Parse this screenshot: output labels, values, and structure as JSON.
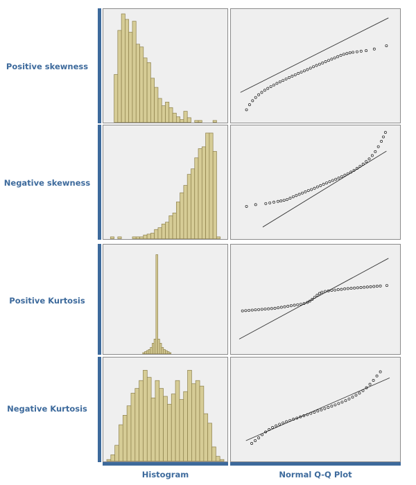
{
  "colors": {
    "label": "#3d6a9c",
    "accent_bar": "#3d6a9c",
    "panel_bg": "#efefef",
    "panel_border": "#8a8a8a",
    "hist_fill": "#d6cc96",
    "hist_stroke": "#8c7f4a",
    "qq_point": "#1a1a1a",
    "qq_line": "#333333"
  },
  "column_labels": [
    "Histogram",
    "Normal Q-Q Plot"
  ],
  "chart_data": [
    {
      "type": "histogram",
      "row_label": "Positive skewness",
      "values": [
        0,
        0,
        52,
        100,
        118,
        112,
        98,
        110,
        85,
        82,
        70,
        65,
        48,
        38,
        26,
        18,
        22,
        16,
        10,
        6,
        3,
        12,
        5,
        0,
        2,
        2,
        0,
        0,
        0,
        2,
        0,
        0
      ],
      "ylim": [
        0,
        118
      ],
      "qq_points": [
        [
          -2.9,
          -2.08
        ],
        [
          -2.75,
          -1.8
        ],
        [
          -2.6,
          -1.58
        ],
        [
          -2.45,
          -1.4
        ],
        [
          -2.3,
          -1.25
        ],
        [
          -2.15,
          -1.12
        ],
        [
          -2.0,
          -1.0
        ],
        [
          -1.85,
          -0.9
        ],
        [
          -1.7,
          -0.8
        ],
        [
          -1.55,
          -0.71
        ],
        [
          -1.4,
          -0.62
        ],
        [
          -1.25,
          -0.54
        ],
        [
          -1.1,
          -0.46
        ],
        [
          -0.95,
          -0.38
        ],
        [
          -0.8,
          -0.3
        ],
        [
          -0.65,
          -0.22
        ],
        [
          -0.5,
          -0.15
        ],
        [
          -0.35,
          -0.07
        ],
        [
          -0.2,
          0.0
        ],
        [
          -0.05,
          0.07
        ],
        [
          0.1,
          0.14
        ],
        [
          0.25,
          0.22
        ],
        [
          0.4,
          0.3
        ],
        [
          0.55,
          0.37
        ],
        [
          0.7,
          0.44
        ],
        [
          0.85,
          0.51
        ],
        [
          1.0,
          0.58
        ],
        [
          1.15,
          0.65
        ],
        [
          1.3,
          0.72
        ],
        [
          1.45,
          0.79
        ],
        [
          1.6,
          0.86
        ],
        [
          1.75,
          0.93
        ],
        [
          1.9,
          0.99
        ],
        [
          2.05,
          1.03
        ],
        [
          2.2,
          1.07
        ],
        [
          2.35,
          1.1
        ],
        [
          2.55,
          1.13
        ],
        [
          2.75,
          1.16
        ],
        [
          3.0,
          1.19
        ],
        [
          3.4,
          1.28
        ],
        [
          4.0,
          1.46
        ]
      ],
      "qq_line": [
        [
          -3.2,
          -1.12
        ],
        [
          4.1,
          3.0
        ]
      ],
      "xlim": [
        -3.5,
        4.5
      ],
      "ylim_qq": [
        -2.6,
        3.3
      ]
    },
    {
      "type": "histogram",
      "row_label": "Negative skewness",
      "values": [
        0,
        2,
        0,
        2,
        0,
        0,
        0,
        2,
        2,
        2,
        4,
        5,
        6,
        10,
        12,
        16,
        18,
        25,
        28,
        40,
        50,
        58,
        70,
        76,
        88,
        98,
        100,
        115,
        115,
        95,
        2,
        0
      ],
      "ylim": [
        0,
        118
      ],
      "qq_points": [
        [
          -3.9,
          -1.36
        ],
        [
          -3.45,
          -1.26
        ],
        [
          -2.95,
          -1.2
        ],
        [
          -2.75,
          -1.16
        ],
        [
          -2.55,
          -1.12
        ],
        [
          -2.35,
          -1.08
        ],
        [
          -2.2,
          -1.05
        ],
        [
          -2.05,
          -1.02
        ],
        [
          -1.9,
          -0.97
        ],
        [
          -1.75,
          -0.9
        ],
        [
          -1.6,
          -0.82
        ],
        [
          -1.45,
          -0.75
        ],
        [
          -1.3,
          -0.68
        ],
        [
          -1.15,
          -0.61
        ],
        [
          -1.0,
          -0.54
        ],
        [
          -0.85,
          -0.47
        ],
        [
          -0.7,
          -0.41
        ],
        [
          -0.55,
          -0.34
        ],
        [
          -0.4,
          -0.26
        ],
        [
          -0.25,
          -0.19
        ],
        [
          -0.1,
          -0.11
        ],
        [
          0.05,
          -0.04
        ],
        [
          0.2,
          0.03
        ],
        [
          0.35,
          0.1
        ],
        [
          0.5,
          0.17
        ],
        [
          0.65,
          0.24
        ],
        [
          0.8,
          0.32
        ],
        [
          0.95,
          0.4
        ],
        [
          1.1,
          0.48
        ],
        [
          1.25,
          0.57
        ],
        [
          1.4,
          0.67
        ],
        [
          1.55,
          0.78
        ],
        [
          1.7,
          0.9
        ],
        [
          1.85,
          1.02
        ],
        [
          2.0,
          1.16
        ],
        [
          2.15,
          1.31
        ],
        [
          2.3,
          1.5
        ],
        [
          2.45,
          1.72
        ],
        [
          2.6,
          2.0
        ],
        [
          2.75,
          2.3
        ],
        [
          2.85,
          2.55
        ],
        [
          2.95,
          2.8
        ]
      ],
      "qq_line": [
        [
          -3.1,
          -2.52
        ],
        [
          3.0,
          1.75
        ]
      ],
      "xlim": [
        -4.5,
        3.5
      ],
      "ylim_qq": [
        -3.0,
        3.0
      ]
    },
    {
      "type": "histogram",
      "row_label": "Positive Kurtosis",
      "values": [
        0,
        0,
        0,
        0,
        0,
        0,
        0,
        0,
        0,
        0,
        0,
        0,
        0,
        0,
        0,
        0,
        0,
        0,
        0,
        1,
        2,
        3,
        4,
        6,
        10,
        14,
        95,
        14,
        10,
        6,
        4,
        3,
        2,
        1,
        0,
        0,
        0,
        0,
        0,
        0,
        0,
        0,
        0,
        0,
        0,
        0,
        0,
        0,
        0,
        0,
        0,
        0,
        0,
        0,
        0,
        0,
        0,
        0,
        0,
        0,
        0,
        0
      ],
      "ylim": [
        0,
        100
      ],
      "qq_points": [
        [
          -4.5,
          -0.45
        ],
        [
          -4.3,
          -0.44
        ],
        [
          -4.1,
          -0.43
        ],
        [
          -3.9,
          -0.42
        ],
        [
          -3.7,
          -0.41
        ],
        [
          -3.5,
          -0.4
        ],
        [
          -3.3,
          -0.39
        ],
        [
          -3.1,
          -0.38
        ],
        [
          -2.9,
          -0.37
        ],
        [
          -2.7,
          -0.36
        ],
        [
          -2.5,
          -0.35
        ],
        [
          -2.3,
          -0.33
        ],
        [
          -2.1,
          -0.31
        ],
        [
          -1.9,
          -0.29
        ],
        [
          -1.7,
          -0.27
        ],
        [
          -1.5,
          -0.25
        ],
        [
          -1.3,
          -0.23
        ],
        [
          -1.1,
          -0.21
        ],
        [
          -0.9,
          -0.19
        ],
        [
          -0.7,
          -0.16
        ],
        [
          -0.5,
          -0.12
        ],
        [
          -0.35,
          -0.07
        ],
        [
          -0.2,
          0.0
        ],
        [
          -0.05,
          0.08
        ],
        [
          0.1,
          0.16
        ],
        [
          0.25,
          0.23
        ],
        [
          0.4,
          0.28
        ],
        [
          0.6,
          0.31
        ],
        [
          0.8,
          0.33
        ],
        [
          1.0,
          0.35
        ],
        [
          1.2,
          0.36
        ],
        [
          1.4,
          0.38
        ],
        [
          1.6,
          0.39
        ],
        [
          1.8,
          0.41
        ],
        [
          2.0,
          0.42
        ],
        [
          2.2,
          0.43
        ],
        [
          2.4,
          0.44
        ],
        [
          2.6,
          0.45
        ],
        [
          2.8,
          0.46
        ],
        [
          3.0,
          0.47
        ],
        [
          3.2,
          0.48
        ],
        [
          3.4,
          0.49
        ],
        [
          3.6,
          0.5
        ],
        [
          3.8,
          0.51
        ],
        [
          4.0,
          0.52
        ],
        [
          4.4,
          0.54
        ]
      ],
      "qq_line": [
        [
          -4.7,
          -1.55
        ],
        [
          4.5,
          1.6
        ]
      ],
      "xlim": [
        -5.0,
        5.0
      ],
      "ylim_qq": [
        -2.0,
        2.0
      ]
    },
    {
      "type": "histogram",
      "row_label": "Negative Kurtosis",
      "values": [
        2,
        8,
        20,
        46,
        58,
        70,
        86,
        92,
        102,
        115,
        106,
        80,
        102,
        92,
        82,
        72,
        85,
        102,
        78,
        88,
        115,
        98,
        102,
        95,
        60,
        48,
        18,
        6,
        2
      ],
      "ylim": [
        0,
        125
      ],
      "qq_points": [
        [
          -2.75,
          -2.45
        ],
        [
          -2.6,
          -2.25
        ],
        [
          -2.45,
          -2.05
        ],
        [
          -2.3,
          -1.82
        ],
        [
          -2.15,
          -1.62
        ],
        [
          -2.0,
          -1.45
        ],
        [
          -1.85,
          -1.3
        ],
        [
          -1.7,
          -1.18
        ],
        [
          -1.55,
          -1.07
        ],
        [
          -1.4,
          -0.97
        ],
        [
          -1.25,
          -0.88
        ],
        [
          -1.1,
          -0.79
        ],
        [
          -0.95,
          -0.7
        ],
        [
          -0.8,
          -0.62
        ],
        [
          -0.65,
          -0.53
        ],
        [
          -0.5,
          -0.45
        ],
        [
          -0.35,
          -0.37
        ],
        [
          -0.2,
          -0.28
        ],
        [
          -0.05,
          -0.2
        ],
        [
          0.1,
          -0.11
        ],
        [
          0.25,
          -0.03
        ],
        [
          0.4,
          0.06
        ],
        [
          0.55,
          0.15
        ],
        [
          0.7,
          0.24
        ],
        [
          0.85,
          0.33
        ],
        [
          1.0,
          0.43
        ],
        [
          1.15,
          0.53
        ],
        [
          1.3,
          0.64
        ],
        [
          1.45,
          0.76
        ],
        [
          1.6,
          0.89
        ],
        [
          1.75,
          1.03
        ],
        [
          1.9,
          1.18
        ],
        [
          2.05,
          1.36
        ],
        [
          2.2,
          1.57
        ],
        [
          2.35,
          1.82
        ],
        [
          2.5,
          2.1
        ],
        [
          2.65,
          2.42
        ],
        [
          2.8,
          2.72
        ]
      ],
      "qq_line": [
        [
          -3.0,
          -2.25
        ],
        [
          3.2,
          2.28
        ]
      ],
      "xlim": [
        -3.5,
        3.5
      ],
      "ylim_qq": [
        -3.5,
        3.5
      ]
    }
  ]
}
